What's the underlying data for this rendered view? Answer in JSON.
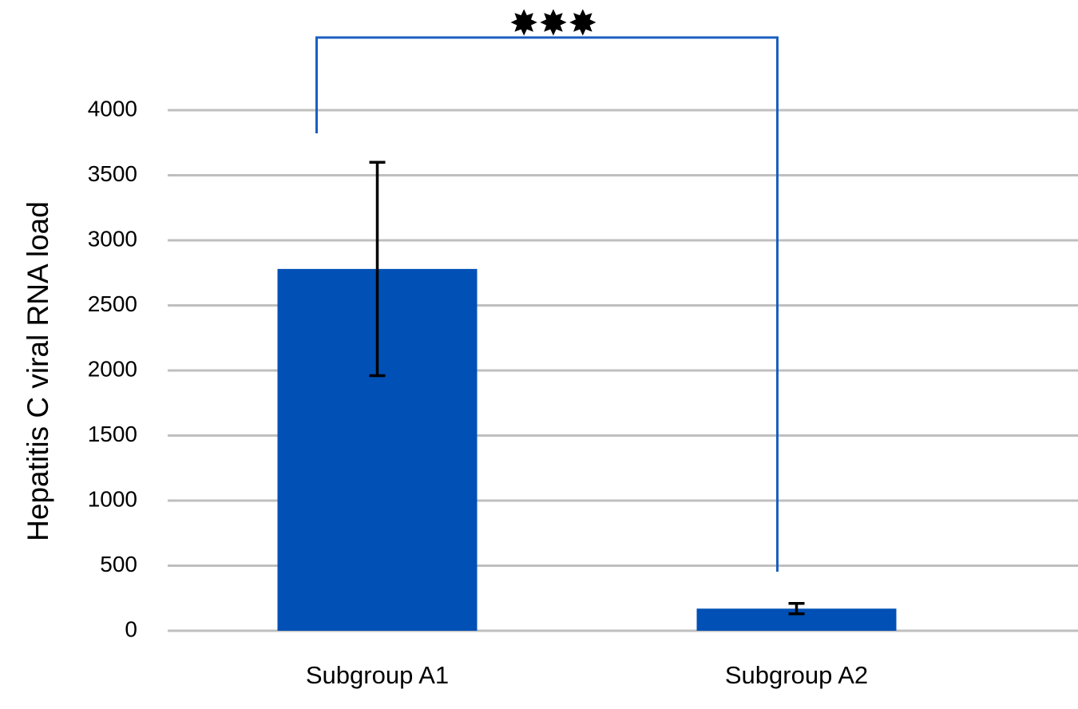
{
  "chart_data": {
    "type": "bar",
    "y_label": "Hepatitis C viral RNA load",
    "categories": [
      "Subgroup A1",
      "Subgroup A2"
    ],
    "values": [
      2780,
      170
    ],
    "errors": [
      820,
      40
    ],
    "color": "#0050b5",
    "ylim": [
      0,
      4000
    ],
    "yticks": [
      0,
      500,
      1000,
      1500,
      2000,
      2500,
      3000,
      3500,
      4000
    ],
    "grid": true,
    "annotation": "✸✸✸"
  }
}
